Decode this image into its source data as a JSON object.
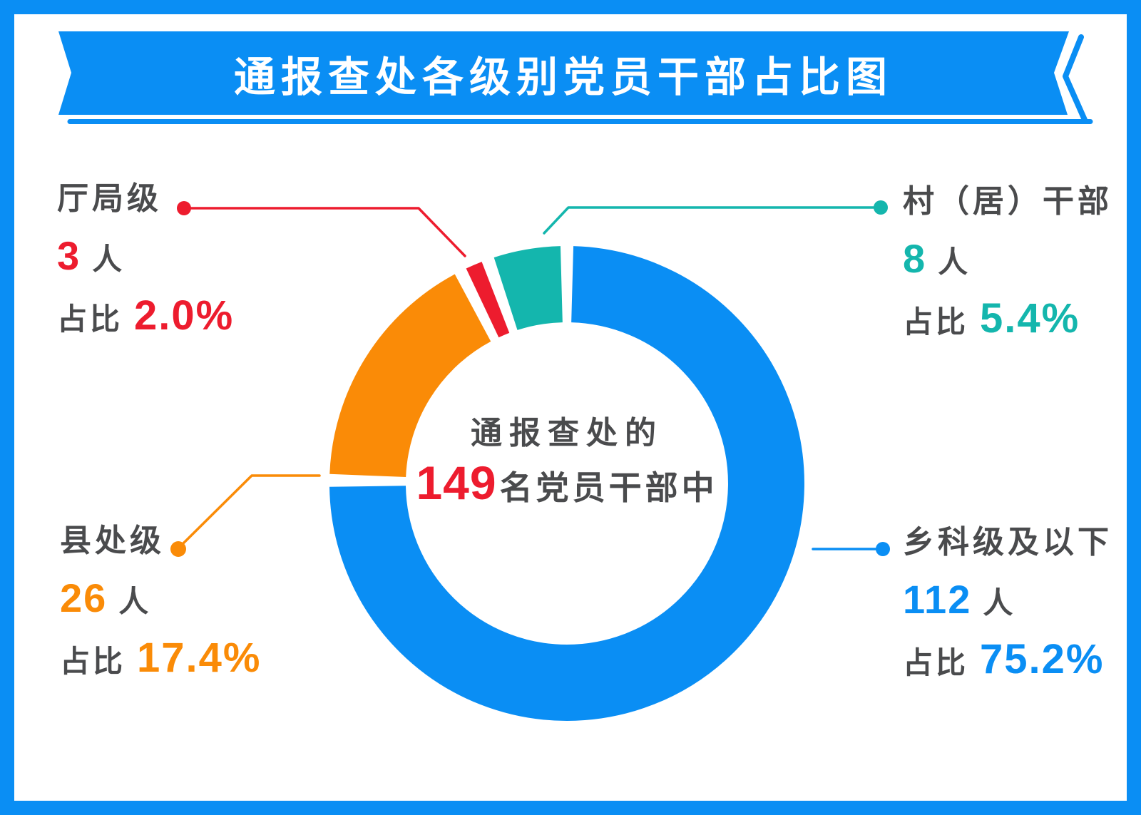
{
  "title": "通报查处各级别党员干部占比图",
  "center": {
    "intro": "通报查处的",
    "total": "149",
    "suffix": "名党员干部中"
  },
  "callouts": {
    "tl": {
      "name": "厅局级",
      "count": "3",
      "unit": "人",
      "pct_label": "占比",
      "pct": "2.0%",
      "color": "#ed1c2e"
    },
    "tr": {
      "name": "村（居）干部",
      "count": "8",
      "unit": "人",
      "pct_label": "占比",
      "pct": "5.4%",
      "color": "#14b6ad"
    },
    "bl": {
      "name": "县处级",
      "count": "26",
      "unit": "人",
      "pct_label": "占比",
      "pct": "17.4%",
      "color": "#fa8b07"
    },
    "br": {
      "name": "乡科级及以下",
      "count": "112",
      "unit": "人",
      "pct_label": "占比",
      "pct": "75.2%",
      "color": "#0a8ef4"
    }
  },
  "colors": {
    "frame_blue": "#0a8ef4",
    "text_gray": "#4a4b4d",
    "highlight_red": "#ed1c2e",
    "white": "#ffffff"
  },
  "chart_data": {
    "type": "pie",
    "variant": "donut",
    "title": "通报查处各级别党员干部占比图",
    "center_text": "通报查处的149名党员干部中",
    "total": 149,
    "unit": "人",
    "start_angle": "12-o'clock",
    "direction": "clockwise",
    "legend_position": "callouts-left-right",
    "segments": [
      {
        "label": "乡科级及以下",
        "value": 112,
        "percent": 75.2,
        "color": "#0a8ef4"
      },
      {
        "label": "县处级",
        "value": 26,
        "percent": 17.4,
        "color": "#fa8b07"
      },
      {
        "label": "厅局级",
        "value": 3,
        "percent": 2.0,
        "color": "#ed1c2e"
      },
      {
        "label": "村（居）干部",
        "value": 8,
        "percent": 5.4,
        "color": "#14b6ad"
      }
    ]
  }
}
